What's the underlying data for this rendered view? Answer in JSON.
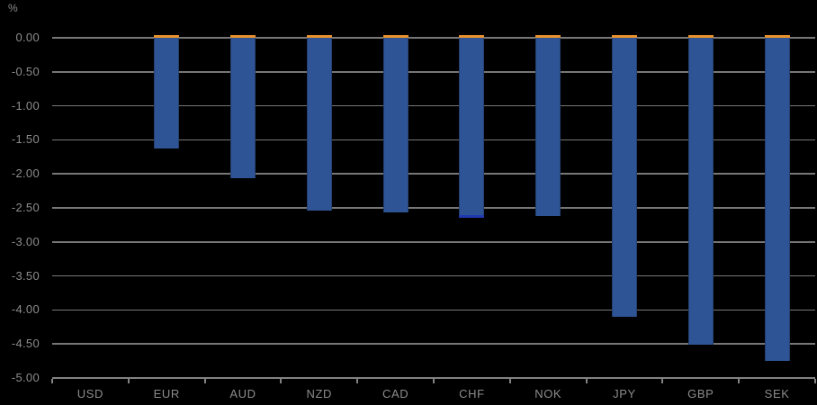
{
  "chart_data": {
    "type": "bar",
    "title": "",
    "ylabel": "%",
    "xlabel": "",
    "categories": [
      "USD",
      "EUR",
      "AUD",
      "NZD",
      "CAD",
      "CHF",
      "NOK",
      "JPY",
      "GBP",
      "SEK"
    ],
    "values": [
      0.0,
      -1.63,
      -2.06,
      -2.54,
      -2.56,
      -2.6,
      -2.62,
      -4.1,
      -4.51,
      -4.75
    ],
    "y_ticks": [
      "0.00",
      "-0.50",
      "-1.00",
      "-1.50",
      "-2.00",
      "-2.50",
      "-3.00",
      "-3.50",
      "-4.00",
      "-4.50",
      "-5.00"
    ],
    "ylim": [
      -5.0,
      0.0
    ],
    "grid": true,
    "legend": "none",
    "bar_top_caps_at_zero": true,
    "annotations": [
      {
        "category": "CHF",
        "value": -2.62,
        "type": "dash"
      }
    ],
    "colors": {
      "background": "#000000",
      "bar": "#2F5496",
      "bar_border": "#24406E",
      "zero_cap": "#E8922F",
      "annotation_dash": "#2038B0",
      "gridline": "#777777",
      "axis": "#828282",
      "text": "#8C8C8C"
    }
  }
}
